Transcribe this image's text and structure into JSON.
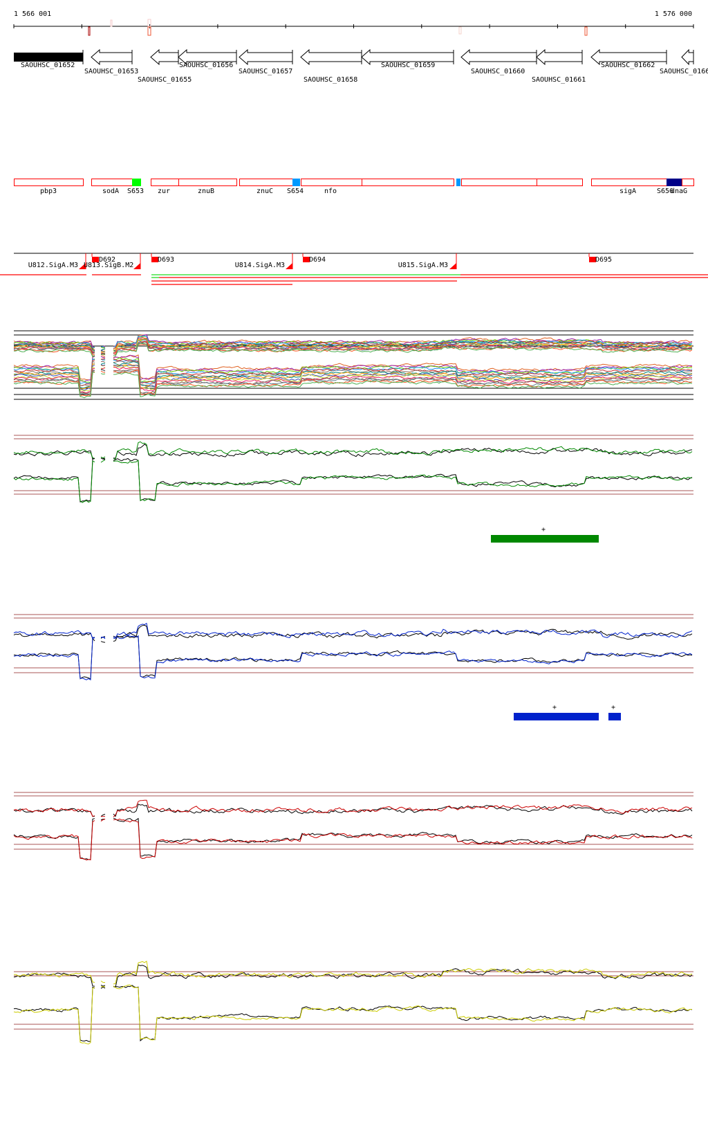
{
  "ruler": {
    "start_label": "1 566 001",
    "end_label": "1 576 000"
  },
  "genes": [
    {
      "label": "SAOUHSC_01652",
      "style": "filled"
    },
    {
      "label": "SAOUHSC_01653",
      "style": "arrow-left"
    },
    {
      "label": "SAOUHSC_01655",
      "style": "arrow-left"
    },
    {
      "label": "SAOUHSC_01656",
      "style": "arrow-left"
    },
    {
      "label": "SAOUHSC_01657",
      "style": "arrow-left"
    },
    {
      "label": "SAOUHSC_01658",
      "style": "arrow-left"
    },
    {
      "label": "SAOUHSC_01659",
      "style": "arrow-left"
    },
    {
      "label": "SAOUHSC_01660",
      "style": "arrow-left"
    },
    {
      "label": "SAOUHSC_01661",
      "style": "arrow-left"
    },
    {
      "label": "SAOUHSC_01662",
      "style": "arrow-left"
    },
    {
      "label": "SAOUHSC_0166",
      "style": "arrow-left"
    }
  ],
  "operons": {
    "labels": [
      "pbp3",
      "sodA",
      "S653",
      "zur",
      "znuB",
      "znuC",
      "S654",
      "nfo",
      "sigA",
      "S656",
      "dnaG"
    ],
    "colors": {
      "outline": "#ff0000",
      "S653": "#00ff00",
      "S654": "#0099ff",
      "S656": "#000088"
    }
  },
  "promoters": {
    "labels": [
      "U812.SigA.M3",
      "U813.SigB.M2",
      "D692",
      "D693",
      "U814.SigA.M3",
      "D694",
      "U815.SigA.M3",
      "D695"
    ],
    "colors": {
      "marker": "#ff0000",
      "green": "#22dd22"
    }
  },
  "signal_panels": [
    {
      "name": "multi-condition",
      "color": "multi"
    },
    {
      "name": "green",
      "color": "#008800",
      "segments": [
        {
          "strand": "+"
        }
      ]
    },
    {
      "name": "blue",
      "color": "#0022cc",
      "segments": [
        {
          "strand": "+"
        },
        {
          "strand": "+"
        }
      ]
    },
    {
      "name": "red",
      "color": "#cc0000"
    },
    {
      "name": "yellow",
      "color": "#cccc00"
    }
  ],
  "threshold_line_color": "#aa5555"
}
